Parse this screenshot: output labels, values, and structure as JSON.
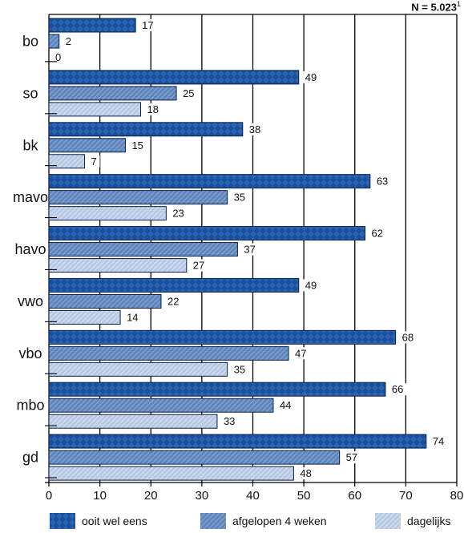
{
  "chart_data": {
    "type": "bar",
    "orientation": "horizontal",
    "note": "N = 5.023",
    "note_superscript": "1",
    "categories": [
      "bo",
      "so",
      "bk",
      "mavo",
      "havo",
      "vwo",
      "vbo",
      "mbo",
      "gd"
    ],
    "series": [
      {
        "name": "ooit wel eens",
        "values": [
          17,
          49,
          38,
          63,
          62,
          49,
          68,
          66,
          74
        ],
        "color": "#1a4f9c"
      },
      {
        "name": "afgelopen 4 weken",
        "values": [
          2,
          25,
          15,
          35,
          37,
          22,
          47,
          44,
          57
        ],
        "color": "#5f86bd"
      },
      {
        "name": "dagelijks",
        "values": [
          0,
          18,
          7,
          23,
          27,
          14,
          35,
          33,
          48
        ],
        "color": "#b7c9e3"
      }
    ],
    "xlim": [
      0,
      80
    ],
    "xticks": [
      "0",
      "10",
      "20",
      "30",
      "40",
      "50",
      "60",
      "70",
      "80"
    ],
    "grid": true,
    "legend_position": "bottom"
  }
}
